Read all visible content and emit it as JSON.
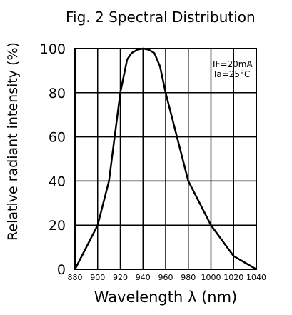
{
  "chart_data": {
    "type": "line",
    "title": "Fig. 2 Spectral Distribution",
    "xlabel": "Wavelength λ (nm)",
    "ylabel": "Relative radiant intensity (%)",
    "xlim": [
      880,
      1040
    ],
    "ylim": [
      0,
      100
    ],
    "x_ticks": [
      880,
      900,
      920,
      940,
      960,
      980,
      1000,
      1020,
      1040
    ],
    "y_ticks": [
      0,
      20,
      40,
      60,
      80,
      100
    ],
    "grid": true,
    "annotation": [
      "IF=20mA",
      "Ta=25°C"
    ],
    "x": [
      880,
      900,
      910,
      920,
      926,
      930,
      935,
      940,
      945,
      950,
      955,
      960,
      970,
      980,
      990,
      1000,
      1020,
      1040
    ],
    "values": [
      0,
      20,
      40,
      80,
      95,
      98,
      99.5,
      100,
      99.5,
      98,
      92,
      80,
      60,
      40,
      30,
      20,
      6,
      0
    ]
  }
}
